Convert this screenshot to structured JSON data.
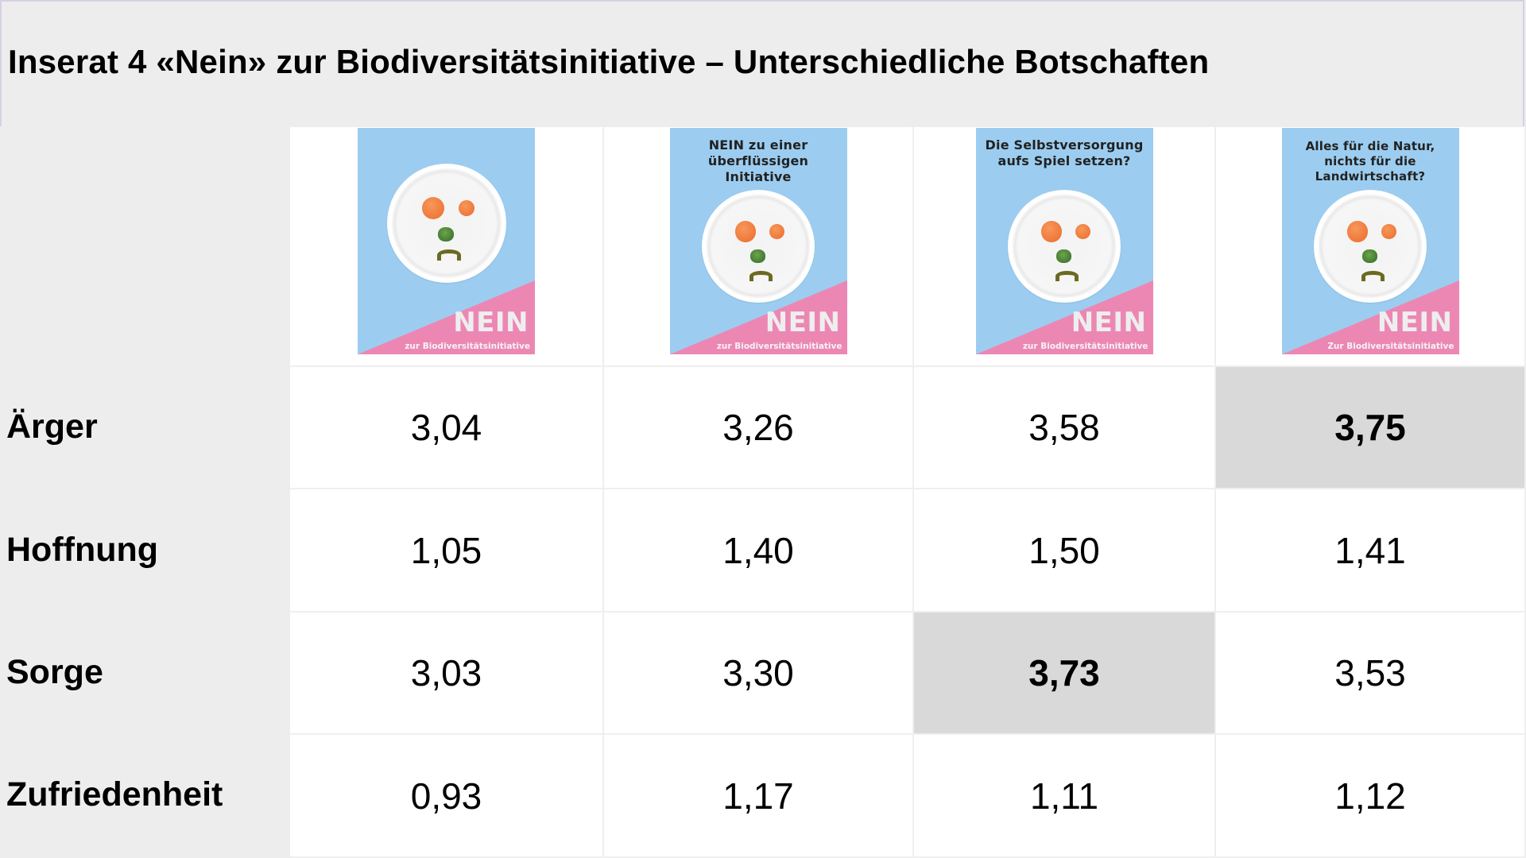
{
  "title": "Inserat 4 «Nein» zur Biodiversitätsinitiative – Unterschiedliche Botschaften",
  "colors": {
    "background": "#ededed",
    "highlight": "#d9d9d9",
    "poster_blue": "#9ccdf0",
    "poster_pink": "#ec87b4"
  },
  "posters": [
    {
      "headline": "",
      "nein": "NEIN",
      "subline": "zur Biodiversitätsinitiative"
    },
    {
      "headline": "NEIN zu einer überflüssigen Initiative",
      "nein": "NEIN",
      "subline": "zur Biodiversitätsinitiative"
    },
    {
      "headline": "Die Selbstversorgung aufs Spiel setzen?",
      "nein": "NEIN",
      "subline": "zur Biodiversitätsinitiative"
    },
    {
      "headline": "Alles für die Natur, nichts für die Landwirtschaft?",
      "nein": "NEIN",
      "subline": "Zur Biodiversitätsinitiative"
    }
  ],
  "rows": [
    {
      "label": "Ärger",
      "values": [
        "3,04",
        "3,26",
        "3,58",
        "3,75"
      ],
      "highlight_index": 3
    },
    {
      "label": "Hoffnung",
      "values": [
        "1,05",
        "1,40",
        "1,50",
        "1,41"
      ],
      "highlight_index": -1
    },
    {
      "label": "Sorge",
      "values": [
        "3,03",
        "3,30",
        "3,73",
        "3,53"
      ],
      "highlight_index": 2
    },
    {
      "label": "Zufriedenheit",
      "values": [
        "0,93",
        "1,17",
        "1,11",
        "1,12"
      ],
      "highlight_index": -1
    }
  ]
}
